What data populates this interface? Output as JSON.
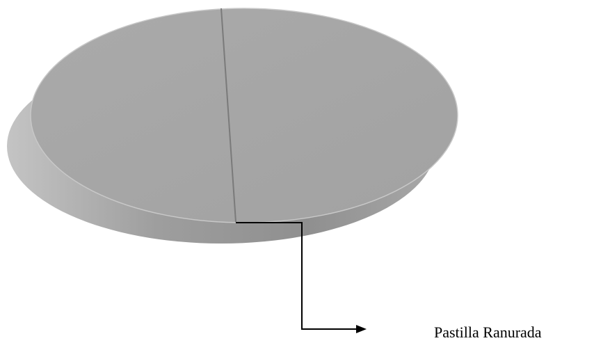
{
  "diagram": {
    "callout_label": "Pastilla Ranurada"
  },
  "colors": {
    "tablet_top": "#a6a6a6",
    "tablet_side_light": "#bdbdbd",
    "tablet_side_dark": "#8c8c8c",
    "score_line": "#7a7a7a",
    "leader_line": "#000000",
    "background": "#ffffff"
  }
}
